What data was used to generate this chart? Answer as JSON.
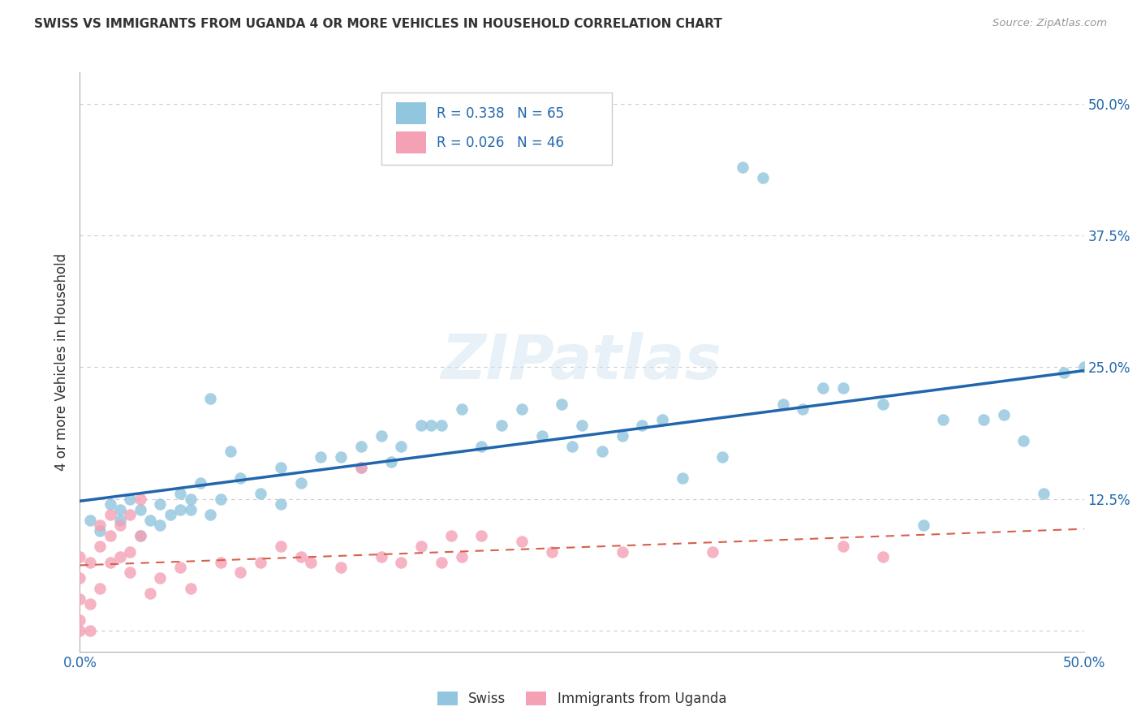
{
  "title": "SWISS VS IMMIGRANTS FROM UGANDA 4 OR MORE VEHICLES IN HOUSEHOLD CORRELATION CHART",
  "source": "Source: ZipAtlas.com",
  "ylabel": "4 or more Vehicles in Household",
  "xlim": [
    0.0,
    0.5
  ],
  "ylim": [
    -0.02,
    0.53
  ],
  "x_ticks": [
    0.0,
    0.1,
    0.2,
    0.3,
    0.4,
    0.5
  ],
  "x_tick_labels": [
    "0.0%",
    "",
    "",
    "",
    "",
    "50.0%"
  ],
  "y_ticks_right": [
    0.0,
    0.125,
    0.25,
    0.375,
    0.5
  ],
  "y_tick_labels_right": [
    "",
    "12.5%",
    "25.0%",
    "37.5%",
    "50.0%"
  ],
  "swiss_R": 0.338,
  "swiss_N": 65,
  "uganda_R": 0.026,
  "uganda_N": 46,
  "swiss_color": "#92c5de",
  "swiss_line_color": "#2166ac",
  "uganda_color": "#f4a0b5",
  "uganda_line_color": "#d6604d",
  "background_color": "#ffffff",
  "grid_color": "#cccccc",
  "watermark": "ZIPatlas",
  "title_color": "#333333",
  "axis_label_color": "#2166ac",
  "swiss_x": [
    0.005,
    0.01,
    0.015,
    0.02,
    0.02,
    0.025,
    0.03,
    0.03,
    0.035,
    0.04,
    0.04,
    0.045,
    0.05,
    0.05,
    0.055,
    0.055,
    0.06,
    0.065,
    0.065,
    0.07,
    0.075,
    0.08,
    0.09,
    0.1,
    0.1,
    0.11,
    0.12,
    0.13,
    0.14,
    0.14,
    0.15,
    0.155,
    0.16,
    0.17,
    0.175,
    0.18,
    0.19,
    0.2,
    0.21,
    0.22,
    0.23,
    0.24,
    0.245,
    0.25,
    0.26,
    0.27,
    0.28,
    0.29,
    0.3,
    0.32,
    0.33,
    0.34,
    0.35,
    0.36,
    0.37,
    0.38,
    0.4,
    0.42,
    0.43,
    0.45,
    0.46,
    0.47,
    0.48,
    0.49,
    0.5
  ],
  "swiss_y": [
    0.105,
    0.095,
    0.12,
    0.115,
    0.105,
    0.125,
    0.09,
    0.115,
    0.105,
    0.12,
    0.1,
    0.11,
    0.115,
    0.13,
    0.115,
    0.125,
    0.14,
    0.22,
    0.11,
    0.125,
    0.17,
    0.145,
    0.13,
    0.12,
    0.155,
    0.14,
    0.165,
    0.165,
    0.155,
    0.175,
    0.185,
    0.16,
    0.175,
    0.195,
    0.195,
    0.195,
    0.21,
    0.175,
    0.195,
    0.21,
    0.185,
    0.215,
    0.175,
    0.195,
    0.17,
    0.185,
    0.195,
    0.2,
    0.145,
    0.165,
    0.44,
    0.43,
    0.215,
    0.21,
    0.23,
    0.23,
    0.215,
    0.1,
    0.2,
    0.2,
    0.205,
    0.18,
    0.13,
    0.245,
    0.25
  ],
  "uganda_x": [
    0.0,
    0.0,
    0.0,
    0.0,
    0.0,
    0.005,
    0.005,
    0.005,
    0.01,
    0.01,
    0.01,
    0.015,
    0.015,
    0.015,
    0.02,
    0.02,
    0.025,
    0.025,
    0.025,
    0.03,
    0.03,
    0.035,
    0.04,
    0.05,
    0.055,
    0.07,
    0.08,
    0.09,
    0.1,
    0.11,
    0.115,
    0.13,
    0.14,
    0.15,
    0.16,
    0.17,
    0.18,
    0.185,
    0.19,
    0.2,
    0.22,
    0.235,
    0.27,
    0.315,
    0.38,
    0.4
  ],
  "uganda_y": [
    0.0,
    0.01,
    0.03,
    0.05,
    0.07,
    0.0,
    0.025,
    0.065,
    0.04,
    0.08,
    0.1,
    0.065,
    0.09,
    0.11,
    0.07,
    0.1,
    0.055,
    0.075,
    0.11,
    0.09,
    0.125,
    0.035,
    0.05,
    0.06,
    0.04,
    0.065,
    0.055,
    0.065,
    0.08,
    0.07,
    0.065,
    0.06,
    0.155,
    0.07,
    0.065,
    0.08,
    0.065,
    0.09,
    0.07,
    0.09,
    0.085,
    0.075,
    0.075,
    0.075,
    0.08,
    0.07
  ]
}
